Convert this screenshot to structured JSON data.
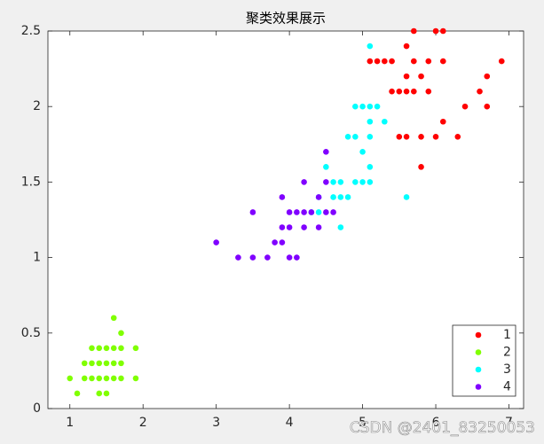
{
  "chart_data": {
    "type": "scatter",
    "title": "聚类效果展示",
    "xlim": [
      0.7,
      7.2
    ],
    "xticks": [
      1,
      2,
      3,
      4,
      5,
      6,
      7
    ],
    "ylim": [
      0,
      2.5
    ],
    "yticks": [
      0,
      0.5,
      1,
      1.5,
      2,
      2.5
    ],
    "legend": "lower right",
    "grid": false,
    "series": [
      {
        "name": "1",
        "color": "#ff0000",
        "x": [
          5.1,
          5.2,
          5.3,
          5.4,
          5.4,
          5.5,
          5.5,
          5.6,
          5.6,
          5.6,
          5.6,
          5.7,
          5.7,
          5.7,
          5.8,
          5.8,
          5.8,
          5.9,
          5.9,
          6.0,
          6.0,
          6.1,
          6.1,
          6.1,
          6.3,
          6.4,
          6.6,
          6.7,
          6.7,
          6.9
        ],
        "values": [
          2.3,
          2.3,
          2.3,
          2.3,
          2.1,
          1.8,
          2.1,
          1.8,
          2.1,
          2.2,
          2.4,
          2.1,
          2.3,
          2.5,
          1.8,
          2.2,
          1.6,
          2.1,
          2.3,
          1.8,
          2.5,
          1.9,
          2.3,
          2.5,
          1.8,
          2.0,
          2.1,
          2.0,
          2.2,
          2.3
        ]
      },
      {
        "name": "2",
        "color": "#80ff00",
        "x": [
          1.0,
          1.1,
          1.2,
          1.3,
          1.3,
          1.3,
          1.4,
          1.4,
          1.4,
          1.5,
          1.5,
          1.5,
          1.5,
          1.6,
          1.6,
          1.6,
          1.6,
          1.7,
          1.7,
          1.7,
          1.7,
          1.9,
          1.9,
          1.2,
          1.4
        ],
        "values": [
          0.2,
          0.1,
          0.2,
          0.2,
          0.3,
          0.4,
          0.1,
          0.2,
          0.3,
          0.1,
          0.2,
          0.3,
          0.4,
          0.2,
          0.4,
          0.6,
          0.3,
          0.2,
          0.3,
          0.5,
          0.4,
          0.2,
          0.4,
          0.3,
          0.4
        ]
      },
      {
        "name": "3",
        "color": "#00ffff",
        "x": [
          4.3,
          4.4,
          4.4,
          4.5,
          4.6,
          4.6,
          4.7,
          4.7,
          4.7,
          4.8,
          4.8,
          4.9,
          4.9,
          5.0,
          5.0,
          5.0,
          5.1,
          5.1,
          5.1,
          5.1,
          5.1,
          5.1,
          5.2,
          5.3,
          4.9,
          5.6
        ],
        "values": [
          1.3,
          1.3,
          1.4,
          1.6,
          1.4,
          1.5,
          1.2,
          1.4,
          1.5,
          1.4,
          1.8,
          1.5,
          1.8,
          1.5,
          1.7,
          2.0,
          1.5,
          1.6,
          1.8,
          1.9,
          2.0,
          2.4,
          2.0,
          1.9,
          2.0,
          1.4
        ]
      },
      {
        "name": "4",
        "color": "#8000ff",
        "x": [
          3.0,
          3.3,
          3.5,
          3.5,
          3.7,
          3.8,
          3.9,
          3.9,
          3.9,
          4.0,
          4.0,
          4.0,
          4.1,
          4.1,
          4.2,
          4.2,
          4.2,
          4.3,
          4.4,
          4.4,
          4.5,
          4.5,
          4.5,
          4.6
        ],
        "values": [
          1.1,
          1.0,
          1.0,
          1.3,
          1.0,
          1.1,
          1.1,
          1.2,
          1.4,
          1.0,
          1.2,
          1.3,
          1.0,
          1.3,
          1.2,
          1.3,
          1.5,
          1.3,
          1.2,
          1.4,
          1.3,
          1.5,
          1.7,
          1.3
        ]
      }
    ],
    "watermark": "CSDN @2401_83250053"
  }
}
